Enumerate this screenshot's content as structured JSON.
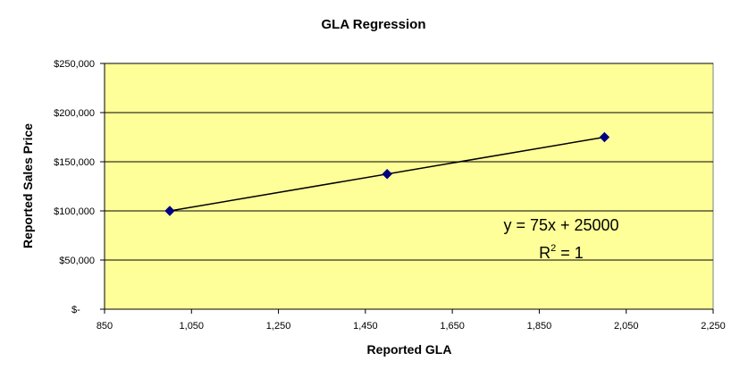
{
  "chart_data": {
    "type": "scatter",
    "title": "GLA Regression",
    "xlabel": "Reported GLA",
    "ylabel": "Reported Sales Price",
    "xlim": [
      850,
      2250
    ],
    "ylim": [
      0,
      250000
    ],
    "x_ticks": [
      850,
      1050,
      1250,
      1450,
      1650,
      1850,
      2050,
      2250
    ],
    "x_tick_labels": [
      "850",
      "1,050",
      "1,250",
      "1,450",
      "1,650",
      "1,850",
      "2,050",
      "2,250"
    ],
    "y_ticks": [
      0,
      50000,
      100000,
      150000,
      200000,
      250000
    ],
    "y_tick_labels": [
      "$-",
      "$50,000",
      "$100,000",
      "$150,000",
      "$200,000",
      "$250,000"
    ],
    "grid": "horizontal",
    "series": [
      {
        "x": [
          1000,
          1500,
          2000
        ],
        "y": [
          100000,
          137500,
          175000
        ]
      }
    ],
    "trendline": {
      "type": "linear",
      "slope": 75,
      "intercept": 25000
    },
    "annotation": {
      "equation": "y = 75x + 25000",
      "r2_prefix": "R",
      "r2_sup": "2",
      "r2_suffix": " = 1"
    },
    "colors": {
      "plot_background": "#FFFF99",
      "marker": "#000080",
      "line": "#000000",
      "grid": "#000000"
    }
  }
}
